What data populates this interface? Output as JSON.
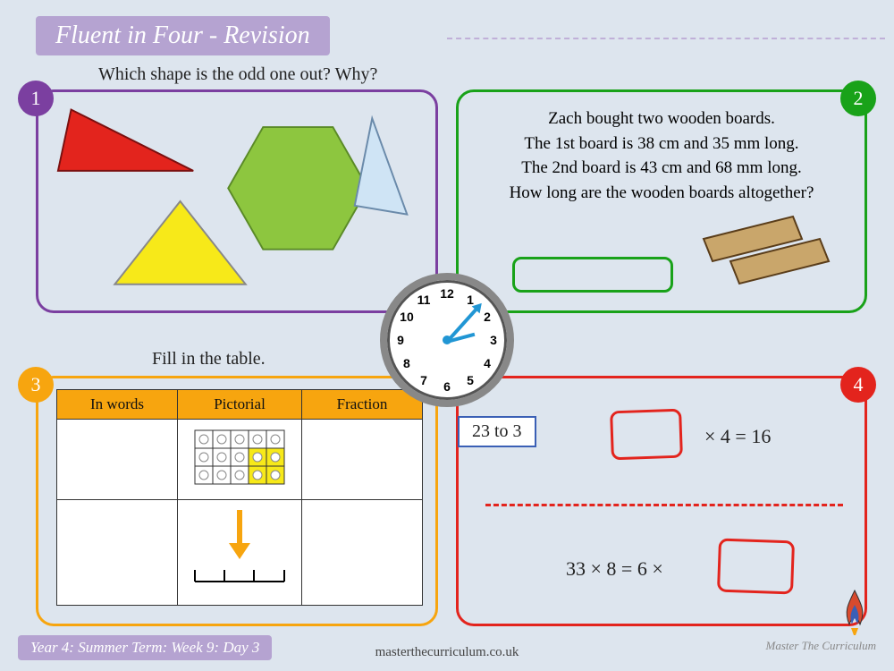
{
  "header": {
    "title": "Fluent in Four - Revision"
  },
  "q1": {
    "number": "1",
    "prompt": "Which shape is the odd one out? Why?",
    "badge_color": "#7b3fa0",
    "border_color": "#7b3fa0",
    "shapes": {
      "tri_red": "#e3241d",
      "tri_yellow": "#f7e919",
      "hexagon": "#8dc63f",
      "tri_light": "#cfe4f5"
    }
  },
  "q2": {
    "number": "2",
    "badge_color": "#19a219",
    "border_color": "#19a219",
    "lines": [
      "Zach bought two wooden boards.",
      "The 1st board is 38 cm and 35 mm long.",
      "The 2nd board is 43 cm and 68 mm long.",
      "How long are the wooden boards altogether?"
    ],
    "board_color": "#c9a66b"
  },
  "q3": {
    "number": "3",
    "prompt": "Fill in the table.",
    "badge_color": "#f7a50f",
    "border_color": "#f7a50f",
    "columns": [
      "In words",
      "Pictorial",
      "Fraction"
    ],
    "grid": {
      "cols": 5,
      "rows": 3,
      "highlighted": [
        [
          2,
          3
        ],
        [
          2,
          4
        ],
        [
          1,
          3
        ],
        [
          1,
          4
        ]
      ]
    }
  },
  "q4": {
    "number": "4",
    "badge_color": "#e3241d",
    "border_color": "#e3241d",
    "eq1_suffix": "× 4 = 16",
    "eq2_prefix": "33 × 8 = 6 ×"
  },
  "clock": {
    "label": "23 to 3",
    "hour_angle": 75,
    "minute_angle": 42
  },
  "footer": {
    "meta": "Year 4: Summer Term: Week 9: Day 3",
    "url": "masterthecurriculum.co.uk",
    "brand": "Master The Curriculum"
  }
}
